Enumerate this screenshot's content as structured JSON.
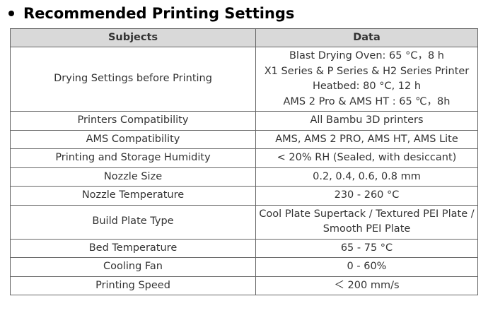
{
  "title": "Recommended Printing Settings",
  "table": {
    "header": [
      "Subjects",
      "Data"
    ],
    "rows": [
      [
        "Drying Settings before Printing",
        [
          "Blast Drying Oven: 65 °C，8 h",
          "X1 Series & P Series & H2 Series Printer",
          "Heatbed: 80 °C, 12 h",
          "AMS 2 Pro & AMS HT : 65 ℃，8h"
        ]
      ],
      [
        "Printers Compatibility",
        [
          "All Bambu 3D printers"
        ]
      ],
      [
        "AMS Compatibility",
        [
          "AMS, AMS 2 PRO, AMS HT, AMS Lite"
        ]
      ],
      [
        "Printing and Storage Humidity",
        [
          "< 20% RH (Sealed, with desiccant)"
        ]
      ],
      [
        "Nozzle Size",
        [
          "0.2, 0.4, 0.6, 0.8 mm"
        ]
      ],
      [
        "Nozzle Temperature",
        [
          "230 - 260 °C"
        ]
      ],
      [
        "Build Plate Type",
        [
          "Cool Plate Supertack / Textured PEI Plate /",
          "Smooth PEI Plate"
        ]
      ],
      [
        "Bed Temperature",
        [
          "65 - 75 °C"
        ]
      ],
      [
        "Cooling Fan",
        [
          "0 - 60%"
        ]
      ],
      [
        "Printing Speed",
        [
          "＜ 200 mm/s"
        ]
      ]
    ]
  }
}
